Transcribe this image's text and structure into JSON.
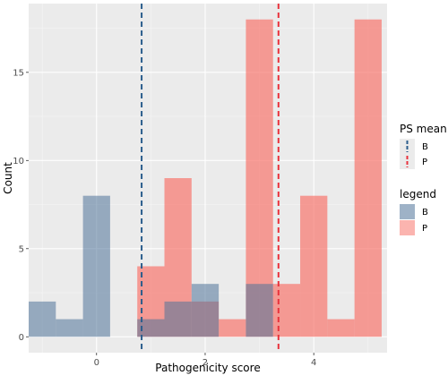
{
  "chart_data": {
    "type": "bar",
    "subtype": "overlapping histogram",
    "xlabel": "Pathogenicity score",
    "ylabel": "Count",
    "xlim": [
      -1.25,
      5.35
    ],
    "ylim": [
      -0.9,
      18.9
    ],
    "x_ticks": [
      0,
      2,
      4
    ],
    "y_ticks": [
      0,
      5,
      10,
      15
    ],
    "grid": true,
    "bin_width": 0.5,
    "series": [
      {
        "name": "B",
        "color": "#4f7399",
        "bins": [
          {
            "x0": -1.25,
            "x1": -0.75,
            "count": 2
          },
          {
            "x0": -0.75,
            "x1": -0.25,
            "count": 1
          },
          {
            "x0": -0.25,
            "x1": 0.25,
            "count": 8
          },
          {
            "x0": 0.75,
            "x1": 1.25,
            "count": 1
          },
          {
            "x0": 1.25,
            "x1": 1.75,
            "count": 2
          },
          {
            "x0": 1.75,
            "x1": 2.25,
            "count": 3
          },
          {
            "x0": 2.75,
            "x1": 3.25,
            "count": 3
          }
        ]
      },
      {
        "name": "P",
        "color": "#f8766d",
        "bins": [
          {
            "x0": 0.75,
            "x1": 1.25,
            "count": 4
          },
          {
            "x0": 1.25,
            "x1": 1.75,
            "count": 9
          },
          {
            "x0": 1.75,
            "x1": 2.25,
            "count": 2
          },
          {
            "x0": 2.25,
            "x1": 2.75,
            "count": 1
          },
          {
            "x0": 2.75,
            "x1": 3.25,
            "count": 18
          },
          {
            "x0": 3.25,
            "x1": 3.75,
            "count": 3
          },
          {
            "x0": 3.75,
            "x1": 4.25,
            "count": 8
          },
          {
            "x0": 4.25,
            "x1": 4.75,
            "count": 1
          },
          {
            "x0": 4.75,
            "x1": 5.25,
            "count": 18
          }
        ]
      }
    ],
    "mean_lines": [
      {
        "name": "B",
        "x": 0.83,
        "color": "#2b5d8c"
      },
      {
        "name": "P",
        "x": 3.35,
        "color": "#e8323c"
      }
    ],
    "legends": [
      {
        "title": "PS mean",
        "placement": "right",
        "entries": [
          "B",
          "P"
        ]
      },
      {
        "title": "legend",
        "placement": "right",
        "entries": [
          "B",
          "P"
        ]
      }
    ]
  }
}
